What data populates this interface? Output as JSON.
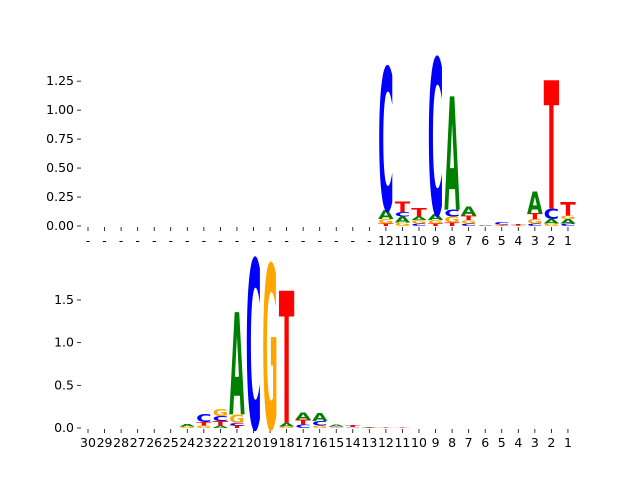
{
  "chart_data": [
    {
      "type": "sequence-logo",
      "title": "",
      "xlabel": "",
      "ylabel": "",
      "ylim": [
        0,
        1.45
      ],
      "yticks": [
        "0.00",
        "0.25",
        "0.50",
        "0.75",
        "1.00",
        "1.25"
      ],
      "ytick_values": [
        0,
        0.25,
        0.5,
        0.75,
        1.0,
        1.25
      ],
      "xticks": [
        "-",
        "-",
        "-",
        "-",
        "-",
        "-",
        "-",
        "-",
        "-",
        "-",
        "-",
        "-",
        "-",
        "-",
        "-",
        "-",
        "-",
        "-",
        "12",
        "11",
        "10",
        "9",
        "8",
        "7",
        "6",
        "5",
        "4",
        "3",
        "2",
        "1"
      ],
      "colors": {
        "A": "#008000",
        "C": "#0000ff",
        "G": "#ffa500",
        "T": "#ff0000"
      },
      "positions": [
        {
          "x": "12",
          "letters": [
            [
              "T",
              0.02
            ],
            [
              "G",
              0.04
            ],
            [
              "A",
              0.08
            ],
            [
              "C",
              1.23
            ]
          ]
        },
        {
          "x": "11",
          "letters": [
            [
              "G",
              0.03
            ],
            [
              "A",
              0.05
            ],
            [
              "C",
              0.04
            ],
            [
              "T",
              0.09
            ]
          ]
        },
        {
          "x": "10",
          "letters": [
            [
              "C",
              0.02
            ],
            [
              "G",
              0.03
            ],
            [
              "A",
              0.03
            ],
            [
              "T",
              0.07
            ]
          ]
        },
        {
          "x": "9",
          "letters": [
            [
              "T",
              0.02
            ],
            [
              "G",
              0.03
            ],
            [
              "A",
              0.05
            ],
            [
              "C",
              1.35
            ]
          ]
        },
        {
          "x": "8",
          "letters": [
            [
              "T",
              0.03
            ],
            [
              "G",
              0.05
            ],
            [
              "C",
              0.06
            ],
            [
              "A",
              0.98
            ]
          ]
        },
        {
          "x": "7",
          "letters": [
            [
              "C",
              0.02
            ],
            [
              "G",
              0.03
            ],
            [
              "T",
              0.04
            ],
            [
              "A",
              0.08
            ]
          ]
        },
        {
          "x": "6",
          "letters": [
            [
              "G",
              0.005
            ],
            [
              "C",
              0.005
            ]
          ]
        },
        {
          "x": "5",
          "letters": [
            [
              "T",
              0.005
            ],
            [
              "G",
              0.01
            ],
            [
              "C",
              0.02
            ]
          ]
        },
        {
          "x": "4",
          "letters": [
            [
              "A",
              0.005
            ],
            [
              "T",
              0.01
            ]
          ]
        },
        {
          "x": "3",
          "letters": [
            [
              "C",
              0.02
            ],
            [
              "G",
              0.04
            ],
            [
              "T",
              0.05
            ],
            [
              "A",
              0.19
            ]
          ]
        },
        {
          "x": "2",
          "letters": [
            [
              "G",
              0.02
            ],
            [
              "A",
              0.04
            ],
            [
              "C",
              0.09
            ],
            [
              "T",
              1.11
            ]
          ]
        },
        {
          "x": "1",
          "letters": [
            [
              "C",
              0.02
            ],
            [
              "A",
              0.04
            ],
            [
              "G",
              0.03
            ],
            [
              "T",
              0.12
            ]
          ]
        }
      ]
    },
    {
      "type": "sequence-logo",
      "title": "",
      "xlabel": "",
      "ylabel": "",
      "ylim": [
        0,
        1.98
      ],
      "yticks": [
        "0.0",
        "0.5",
        "1.0",
        "1.5"
      ],
      "ytick_values": [
        0,
        0.5,
        1.0,
        1.5
      ],
      "xticks": [
        "30",
        "29",
        "28",
        "27",
        "26",
        "25",
        "24",
        "23",
        "22",
        "21",
        "20",
        "19",
        "18",
        "17",
        "16",
        "15",
        "14",
        "13",
        "12",
        "11",
        "10",
        "9",
        "8",
        "7",
        "6",
        "5",
        "4",
        "3",
        "2",
        "1"
      ],
      "colors": {
        "A": "#008000",
        "C": "#0000ff",
        "G": "#ffa500",
        "T": "#ff0000"
      },
      "positions": [
        {
          "x": "24",
          "letters": [
            [
              "G",
              0.02
            ],
            [
              "A",
              0.03
            ]
          ]
        },
        {
          "x": "23",
          "letters": [
            [
              "G",
              0.03
            ],
            [
              "T",
              0.04
            ],
            [
              "C",
              0.09
            ]
          ]
        },
        {
          "x": "22",
          "letters": [
            [
              "A",
              0.03
            ],
            [
              "T",
              0.05
            ],
            [
              "C",
              0.06
            ],
            [
              "G",
              0.08
            ]
          ]
        },
        {
          "x": "21",
          "letters": [
            [
              "T",
              0.03
            ],
            [
              "C",
              0.03
            ],
            [
              "G",
              0.1
            ],
            [
              "A",
              1.2
            ]
          ]
        },
        {
          "x": "20",
          "letters": [
            [
              "C",
              1.98
            ]
          ]
        },
        {
          "x": "19",
          "letters": [
            [
              "G",
              1.92
            ]
          ]
        },
        {
          "x": "18",
          "letters": [
            [
              "G",
              0.02
            ],
            [
              "A",
              0.04
            ],
            [
              "T",
              1.55
            ]
          ]
        },
        {
          "x": "17",
          "letters": [
            [
              "C",
              0.04
            ],
            [
              "T",
              0.06
            ],
            [
              "A",
              0.08
            ]
          ]
        },
        {
          "x": "16",
          "letters": [
            [
              "G",
              0.03
            ],
            [
              "C",
              0.05
            ],
            [
              "A",
              0.09
            ]
          ]
        },
        {
          "x": "15",
          "letters": [
            [
              "C",
              0.01
            ],
            [
              "T",
              0.01
            ],
            [
              "A",
              0.02
            ]
          ]
        },
        {
          "x": "14",
          "letters": [
            [
              "C",
              0.01
            ],
            [
              "T",
              0.02
            ]
          ]
        },
        {
          "x": "13",
          "letters": [
            [
              "A",
              0.005
            ],
            [
              "T",
              0.01
            ]
          ]
        },
        {
          "x": "12",
          "letters": [
            [
              "T",
              0.005
            ]
          ]
        },
        {
          "x": "11",
          "letters": [
            [
              "T",
              0.005
            ]
          ]
        }
      ]
    }
  ]
}
